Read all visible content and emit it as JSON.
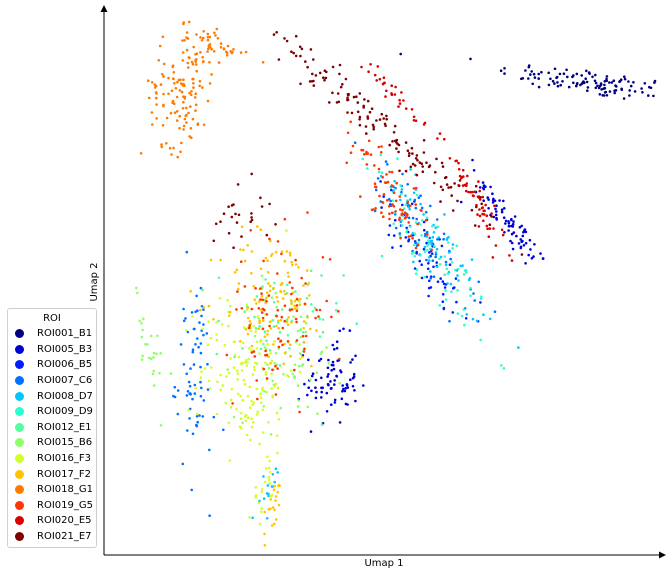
{
  "chart_data": {
    "type": "scatter",
    "title": "",
    "xlabel": "Umap 1",
    "ylabel": "Umap 2",
    "grid": false,
    "ticks": "none",
    "legend": {
      "title": "ROI",
      "placement": "lower-left"
    },
    "series": [
      {
        "name": "ROI001_B1",
        "color": "#00007f",
        "clusters": [
          {
            "cx": 9.2,
            "cy": 8.7,
            "sx": 0.9,
            "sy": 0.12,
            "rot": -0.13,
            "n": 120
          }
        ]
      },
      {
        "name": "ROI005_B3",
        "color": "#0000d5",
        "clusters": [
          {
            "cx": 7.65,
            "cy": 6.1,
            "sx": 0.55,
            "sy": 0.12,
            "rot": -0.95,
            "n": 80
          },
          {
            "cx": 4.3,
            "cy": 3.2,
            "sx": 0.25,
            "sy": 0.4,
            "rot": 0.0,
            "n": 80
          }
        ]
      },
      {
        "name": "ROI006_B5",
        "color": "#001cff",
        "clusters": [
          {
            "cx": 6.1,
            "cy": 5.5,
            "sx": 0.65,
            "sy": 0.2,
            "rot": -1.0,
            "n": 80
          }
        ]
      },
      {
        "name": "ROI007_C6",
        "color": "#0072ff",
        "clusters": [
          {
            "cx": 1.7,
            "cy": 3.3,
            "sx": 0.18,
            "sy": 0.9,
            "rot": 0.05,
            "n": 70
          },
          {
            "cx": 6.0,
            "cy": 5.9,
            "sx": 0.9,
            "sy": 0.2,
            "rot": -1.0,
            "n": 70
          }
        ]
      },
      {
        "name": "ROI008_D7",
        "color": "#00c8ff",
        "clusters": [
          {
            "cx": 6.3,
            "cy": 5.7,
            "sx": 0.8,
            "sy": 0.2,
            "rot": -1.0,
            "n": 60
          },
          {
            "cx": 3.1,
            "cy": 1.3,
            "sx": 0.08,
            "sy": 0.35,
            "rot": -0.2,
            "n": 15
          }
        ]
      },
      {
        "name": "ROI009_D9",
        "color": "#2affcd",
        "clusters": [
          {
            "cx": 6.2,
            "cy": 5.6,
            "sx": 0.85,
            "sy": 0.22,
            "rot": -1.0,
            "n": 80
          }
        ]
      },
      {
        "name": "ROI012_E1",
        "color": "#52ff9c",
        "clusters": [
          {
            "cx": 3.3,
            "cy": 4.2,
            "sx": 0.6,
            "sy": 0.6,
            "rot": 0.0,
            "n": 60
          }
        ]
      },
      {
        "name": "ROI015_B6",
        "color": "#8eff6a",
        "clusters": [
          {
            "cx": 3.5,
            "cy": 3.7,
            "sx": 0.5,
            "sy": 0.6,
            "rot": 0.0,
            "n": 60
          },
          {
            "cx": 0.9,
            "cy": 3.6,
            "sx": 0.12,
            "sy": 0.55,
            "rot": 0.3,
            "n": 25
          }
        ]
      },
      {
        "name": "ROI016_F3",
        "color": "#d1ff27",
        "clusters": [
          {
            "cx": 2.7,
            "cy": 3.4,
            "sx": 0.45,
            "sy": 0.75,
            "rot": 0.0,
            "n": 150
          },
          {
            "cx": 3.0,
            "cy": 1.2,
            "sx": 0.08,
            "sy": 0.35,
            "rot": -0.2,
            "n": 20
          }
        ]
      },
      {
        "name": "ROI017_F2",
        "color": "#ffc400",
        "clusters": [
          {
            "cx": 3.2,
            "cy": 4.7,
            "sx": 0.5,
            "sy": 0.65,
            "rot": 0.0,
            "n": 120
          },
          {
            "cx": 3.2,
            "cy": 0.8,
            "sx": 0.06,
            "sy": 0.3,
            "rot": -0.2,
            "n": 20
          }
        ]
      },
      {
        "name": "ROI018_G1",
        "color": "#ff7a00",
        "clusters": [
          {
            "cx": 1.5,
            "cy": 8.6,
            "sx": 0.3,
            "sy": 0.55,
            "rot": -0.15,
            "n": 130
          },
          {
            "cx": 2.1,
            "cy": 9.4,
            "sx": 0.3,
            "sy": 0.12,
            "rot": -0.4,
            "n": 40
          }
        ]
      },
      {
        "name": "ROI019_G5",
        "color": "#ff3600",
        "clusters": [
          {
            "cx": 3.3,
            "cy": 4.5,
            "sx": 0.5,
            "sy": 0.7,
            "rot": 0.0,
            "n": 90
          },
          {
            "cx": 5.4,
            "cy": 6.6,
            "sx": 0.7,
            "sy": 0.2,
            "rot": -1.0,
            "n": 80
          }
        ]
      },
      {
        "name": "ROI020_E5",
        "color": "#da0000",
        "clusters": [
          {
            "cx": 7.0,
            "cy": 6.6,
            "sx": 0.55,
            "sy": 0.09,
            "rot": -1.05,
            "n": 60
          },
          {
            "cx": 5.5,
            "cy": 8.5,
            "sx": 0.4,
            "sy": 0.08,
            "rot": -0.8,
            "n": 30
          }
        ]
      },
      {
        "name": "ROI021_E7",
        "color": "#7f0000",
        "clusters": [
          {
            "cx": 5.2,
            "cy": 7.9,
            "sx": 1.4,
            "sy": 0.15,
            "rot": -0.72,
            "n": 140
          },
          {
            "cx": 2.6,
            "cy": 6.3,
            "sx": 0.3,
            "sy": 0.3,
            "rot": 0.0,
            "n": 25
          }
        ]
      }
    ],
    "xlim": [
      0,
      10.5
    ],
    "ylim": [
      0,
      10
    ]
  }
}
